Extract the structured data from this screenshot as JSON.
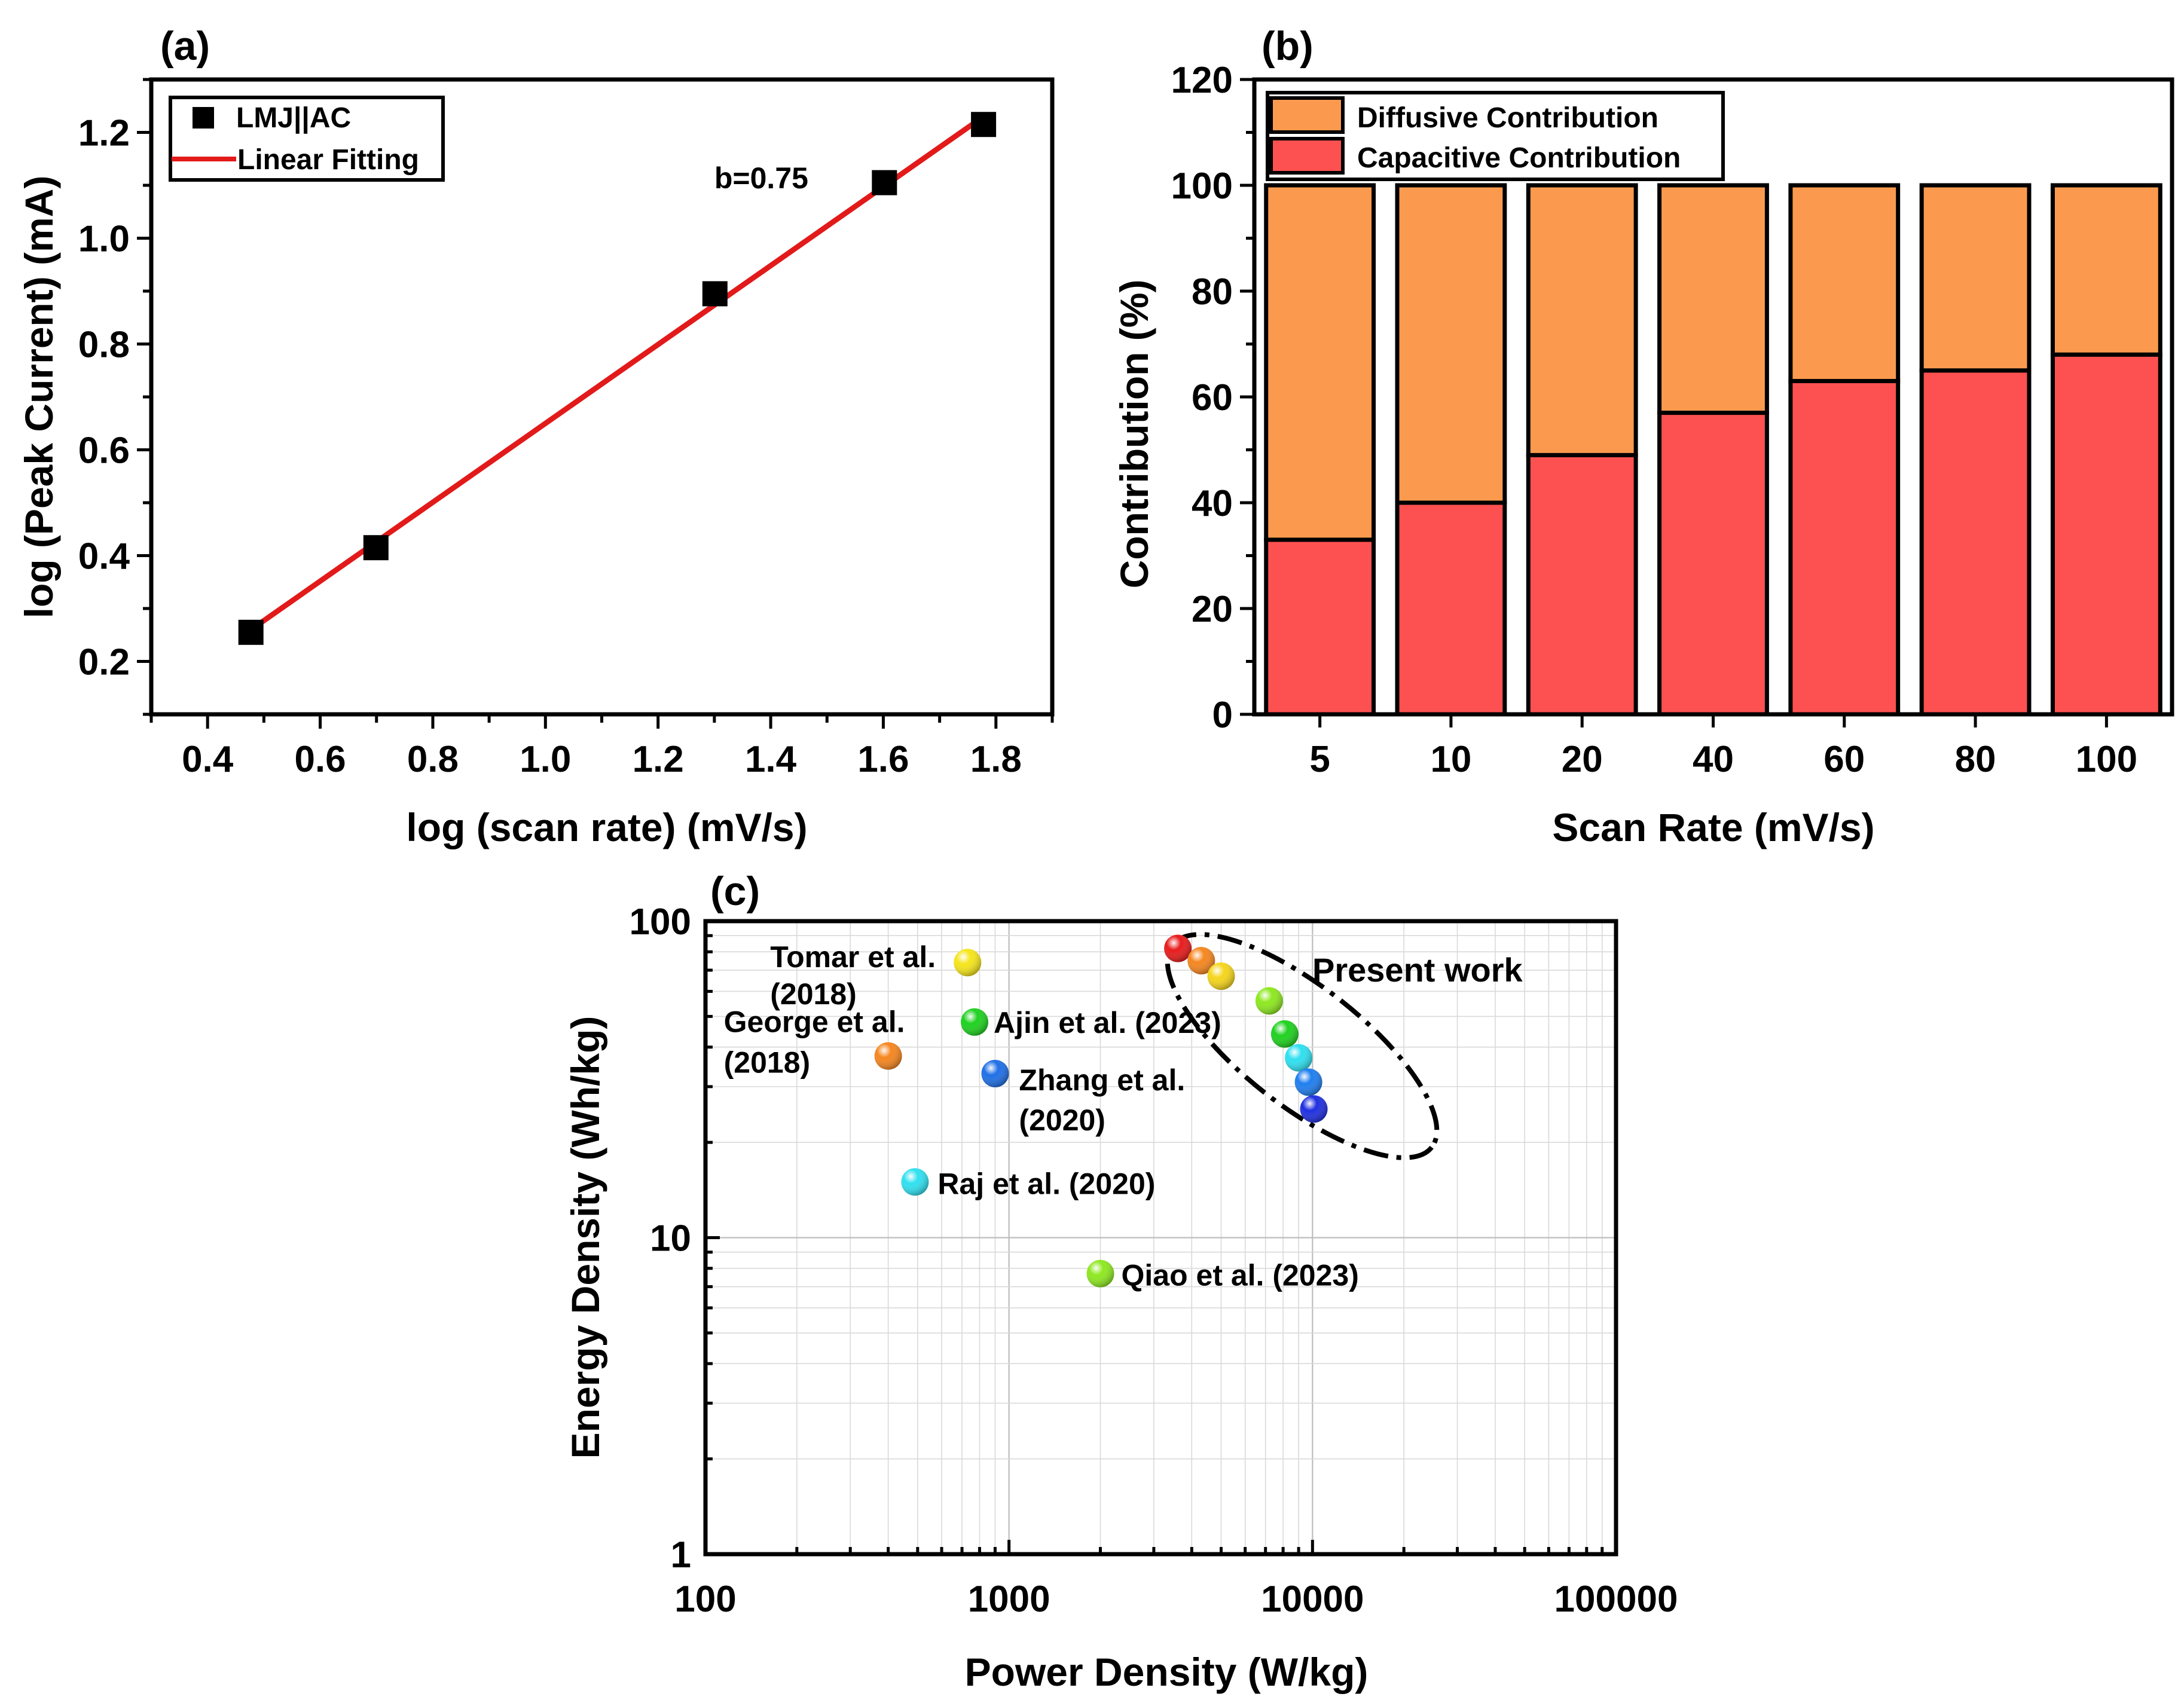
{
  "figure": {
    "panels": [
      "(a)",
      "(b)",
      "(c)"
    ]
  },
  "chart_data": [
    {
      "id": "a",
      "type": "scatter",
      "panel_label": "(a)",
      "xlabel": "log (scan rate) (mV/s)",
      "ylabel": "log (Peak Current) (mA)",
      "xlim": [
        0.3,
        1.9
      ],
      "ylim": [
        0.1,
        1.3
      ],
      "xticks": [
        "0.4",
        "0.6",
        "0.8",
        "1.0",
        "1.2",
        "1.4",
        "1.6",
        "1.8"
      ],
      "yticks": [
        "0.2",
        "0.4",
        "0.6",
        "0.8",
        "1.0",
        "1.2"
      ],
      "series": [
        {
          "name": "LMJ||AC",
          "kind": "marker",
          "color": "#000000",
          "x": [
            0.477,
            0.699,
            1.301,
            1.602,
            1.778
          ],
          "y": [
            0.255,
            0.415,
            0.895,
            1.105,
            1.215
          ]
        },
        {
          "name": "Linear Fitting",
          "kind": "line",
          "color": "#e21a1a",
          "x": [
            0.477,
            1.778
          ],
          "y": [
            0.26,
            1.23
          ]
        }
      ],
      "annotations": [
        {
          "text": "b=0.75",
          "x": 1.3,
          "y": 1.11
        }
      ],
      "legend": [
        "LMJ||AC",
        "Linear Fitting"
      ],
      "legend_position": "top-left"
    },
    {
      "id": "b",
      "type": "bar",
      "stacked": true,
      "panel_label": "(b)",
      "xlabel": "Scan Rate (mV/s)",
      "ylabel": "Contribution (%)",
      "ylim": [
        0,
        120
      ],
      "yticks": [
        "0",
        "20",
        "40",
        "60",
        "80",
        "100",
        "120"
      ],
      "categories": [
        "5",
        "10",
        "20",
        "40",
        "60",
        "80",
        "100"
      ],
      "series": [
        {
          "name": "Capacitive Contribution",
          "color": "#fc5150",
          "values": [
            33,
            40,
            49,
            57,
            63,
            65,
            68
          ]
        },
        {
          "name": "Diffusive Contribution",
          "color": "#fb9a4e",
          "values": [
            67,
            60,
            51,
            43,
            37,
            35,
            32
          ]
        }
      ],
      "legend": [
        "Diffusive Contribution",
        "Capacitive Contribution"
      ],
      "legend_position": "top-left"
    },
    {
      "id": "c",
      "type": "scatter",
      "scale": "log-log",
      "panel_label": "(c)",
      "xlabel": "Power Density (W/kg)",
      "ylabel": "Energy Density (Wh/kg)",
      "xlim": [
        100,
        100000
      ],
      "ylim": [
        1,
        100
      ],
      "xticks": [
        "100",
        "1000",
        "10000",
        "100000"
      ],
      "yticks": [
        "1",
        "10",
        "100"
      ],
      "points": [
        {
          "label": "Tomar et al.",
          "label2": "(2018)",
          "x": 730,
          "y": 74,
          "color": "#f5e51b"
        },
        {
          "label": "George et al.",
          "label2": "(2018)",
          "x": 400,
          "y": 37.5,
          "color": "#f5861f"
        },
        {
          "label": "Ajin et al. (2023)",
          "label2": "",
          "x": 770,
          "y": 48,
          "color": "#1fd11f"
        },
        {
          "label": "Zhang et al.",
          "label2": "(2020)",
          "x": 900,
          "y": 33,
          "color": "#1f6fe6"
        },
        {
          "label": "Raj et al. (2020)",
          "label2": "",
          "x": 490,
          "y": 15,
          "color": "#2fe0f0"
        },
        {
          "label": "Qiao et al. (2023)",
          "label2": "",
          "x": 2000,
          "y": 7.7,
          "color": "#8de81f"
        }
      ],
      "present_work": {
        "label": "Present work",
        "x": [
          3600,
          4300,
          5000,
          7200,
          8100,
          9000,
          9700,
          10100
        ],
        "y": [
          82,
          75,
          67,
          56,
          44,
          37,
          31,
          25.5
        ],
        "colors": [
          "#e81b1b",
          "#f5861f",
          "#f5d51b",
          "#8de81f",
          "#1fd11f",
          "#2fe0f0",
          "#1f7ef0",
          "#1f2fe0"
        ]
      }
    }
  ]
}
